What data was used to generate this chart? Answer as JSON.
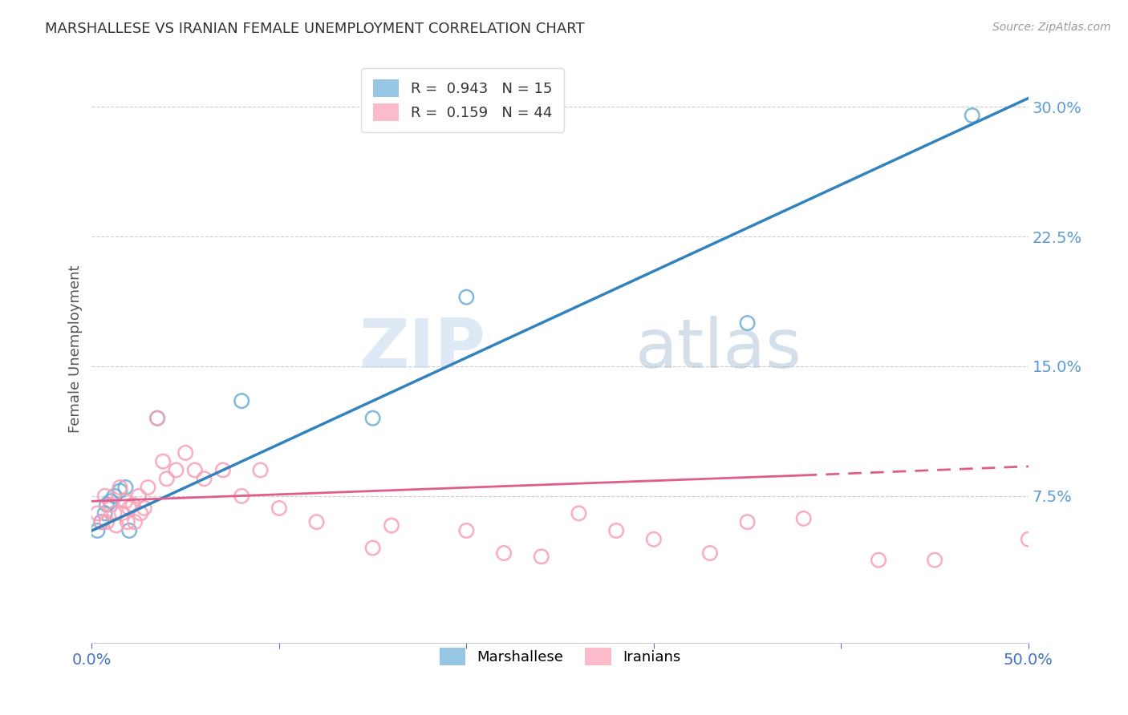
{
  "title": "MARSHALLESE VS IRANIAN FEMALE UNEMPLOYMENT CORRELATION CHART",
  "source": "Source: ZipAtlas.com",
  "ylabel": "Female Unemployment",
  "watermark": "ZIPatlas",
  "xlim": [
    0.0,
    0.5
  ],
  "ylim": [
    -0.01,
    0.33
  ],
  "xticks": [
    0.0,
    0.1,
    0.2,
    0.3,
    0.4,
    0.5
  ],
  "yticks_right": [
    0.075,
    0.15,
    0.225,
    0.3
  ],
  "ytick_labels_right": [
    "7.5%",
    "15.0%",
    "22.5%",
    "30.0%"
  ],
  "xtick_labels": [
    "0.0%",
    "",
    "",
    "",
    "",
    "50.0%"
  ],
  "marshallese_color": "#6baed6",
  "iranians_color": "#fa9fb5",
  "marshallese_line_color": "#3182bd",
  "iranians_line_color": "#e05c8a",
  "R_marshallese": 0.943,
  "N_marshallese": 15,
  "R_iranians": 0.159,
  "N_iranians": 44,
  "marshallese_points": [
    [
      0.003,
      0.055
    ],
    [
      0.005,
      0.06
    ],
    [
      0.007,
      0.065
    ],
    [
      0.008,
      0.07
    ],
    [
      0.01,
      0.072
    ],
    [
      0.012,
      0.075
    ],
    [
      0.015,
      0.078
    ],
    [
      0.018,
      0.08
    ],
    [
      0.02,
      0.055
    ],
    [
      0.035,
      0.12
    ],
    [
      0.08,
      0.13
    ],
    [
      0.15,
      0.12
    ],
    [
      0.2,
      0.19
    ],
    [
      0.35,
      0.175
    ],
    [
      0.47,
      0.295
    ]
  ],
  "iranians_points": [
    [
      0.003,
      0.065
    ],
    [
      0.005,
      0.06
    ],
    [
      0.007,
      0.075
    ],
    [
      0.008,
      0.06
    ],
    [
      0.01,
      0.07
    ],
    [
      0.012,
      0.065
    ],
    [
      0.013,
      0.058
    ],
    [
      0.015,
      0.08
    ],
    [
      0.016,
      0.065
    ],
    [
      0.018,
      0.072
    ],
    [
      0.019,
      0.06
    ],
    [
      0.02,
      0.068
    ],
    [
      0.022,
      0.07
    ],
    [
      0.023,
      0.06
    ],
    [
      0.025,
      0.075
    ],
    [
      0.026,
      0.065
    ],
    [
      0.028,
      0.068
    ],
    [
      0.03,
      0.08
    ],
    [
      0.035,
      0.12
    ],
    [
      0.038,
      0.095
    ],
    [
      0.04,
      0.085
    ],
    [
      0.045,
      0.09
    ],
    [
      0.05,
      0.1
    ],
    [
      0.055,
      0.09
    ],
    [
      0.06,
      0.085
    ],
    [
      0.07,
      0.09
    ],
    [
      0.08,
      0.075
    ],
    [
      0.09,
      0.09
    ],
    [
      0.1,
      0.068
    ],
    [
      0.12,
      0.06
    ],
    [
      0.15,
      0.045
    ],
    [
      0.16,
      0.058
    ],
    [
      0.2,
      0.055
    ],
    [
      0.22,
      0.042
    ],
    [
      0.24,
      0.04
    ],
    [
      0.26,
      0.065
    ],
    [
      0.28,
      0.055
    ],
    [
      0.3,
      0.05
    ],
    [
      0.33,
      0.042
    ],
    [
      0.35,
      0.06
    ],
    [
      0.38,
      0.062
    ],
    [
      0.42,
      0.038
    ],
    [
      0.45,
      0.038
    ],
    [
      0.5,
      0.05
    ]
  ],
  "background_color": "#ffffff",
  "grid_color": "#cccccc",
  "title_color": "#333333",
  "axis_label_color": "#555555",
  "tick_color_right": "#5b9bd5",
  "tick_color_x": "#4472c4"
}
